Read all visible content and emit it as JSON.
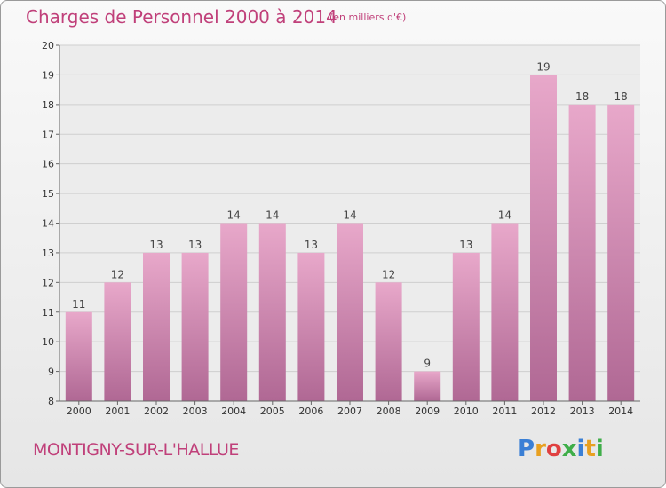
{
  "title": "Charges de Personnel 2000 à 2014",
  "subtitle": "(en milliers d'€)",
  "town": "MONTIGNY-SUR-L'HALLUE",
  "logo": {
    "text": "Proxiti",
    "colors": [
      "#3a7fd5",
      "#e8a020",
      "#e04040",
      "#3fae49",
      "#3a7fd5",
      "#e8a020",
      "#3fae49"
    ]
  },
  "colors": {
    "bar_top": "#e8a8ca",
    "bar_bottom": "#b06894",
    "accent": "#c0407a",
    "grid": "#cfcfcf"
  },
  "chart_data": {
    "type": "bar",
    "title": "Charges de Personnel 2000 à 2014",
    "subtitle": "(en milliers d'€)",
    "categories": [
      "2000",
      "2001",
      "2002",
      "2003",
      "2004",
      "2005",
      "2006",
      "2007",
      "2008",
      "2009",
      "2010",
      "2011",
      "2012",
      "2013",
      "2014"
    ],
    "values": [
      11,
      12,
      13,
      13,
      14,
      14,
      13,
      14,
      12,
      9,
      13,
      14,
      19,
      18,
      18
    ],
    "labels": [
      "11",
      "12",
      "13",
      "13",
      "14",
      "14",
      "13",
      "14",
      "12",
      "9",
      "13",
      "14",
      "19",
      "18",
      "18"
    ],
    "yticks": [
      "8",
      "9",
      "10",
      "11",
      "12",
      "13",
      "14",
      "15",
      "16",
      "17",
      "18",
      "19",
      "20"
    ],
    "ylim": [
      8,
      20
    ],
    "grid": true
  }
}
